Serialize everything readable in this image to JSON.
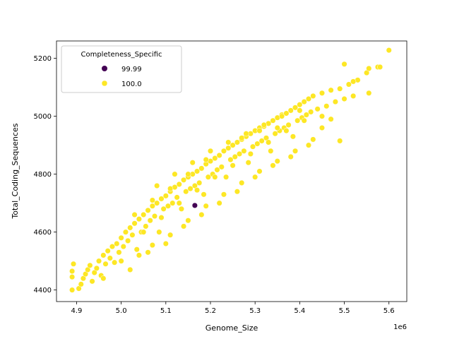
{
  "chart_data": {
    "type": "scatter",
    "xlabel": "Genome_Size",
    "ylabel": "Total_Coding_Sequences",
    "x_offset_label": "1e6",
    "xlim": [
      4.855,
      5.64
    ],
    "ylim": [
      4360,
      5260
    ],
    "x_ticks": [
      4.9,
      5.0,
      5.1,
      5.2,
      5.3,
      5.4,
      5.5,
      5.6
    ],
    "x_tick_labels": [
      "4.9",
      "5.0",
      "5.1",
      "5.2",
      "5.3",
      "5.4",
      "5.5",
      "5.6"
    ],
    "y_ticks": [
      4400,
      4600,
      4800,
      5000,
      5200
    ],
    "y_tick_labels": [
      "4400",
      "4600",
      "4800",
      "5000",
      "5200"
    ],
    "grid": false,
    "legend": {
      "title": "Completeness_Specific",
      "placement": "top-left",
      "entries": [
        "99.99",
        "100.0"
      ]
    },
    "series": [
      {
        "name": "99.99",
        "color": "#440154",
        "points": [
          [
            5.165,
            4692
          ]
        ]
      },
      {
        "name": "100.0",
        "color": "#fde725",
        "points": [
          [
            4.89,
            4400
          ],
          [
            4.89,
            4445
          ],
          [
            4.89,
            4465
          ],
          [
            4.893,
            4490
          ],
          [
            4.905,
            4405
          ],
          [
            4.91,
            4420
          ],
          [
            4.915,
            4440
          ],
          [
            4.92,
            4455
          ],
          [
            4.925,
            4470
          ],
          [
            4.93,
            4485
          ],
          [
            4.935,
            4430
          ],
          [
            4.94,
            4460
          ],
          [
            4.945,
            4475
          ],
          [
            4.95,
            4500
          ],
          [
            4.955,
            4450
          ],
          [
            4.96,
            4520
          ],
          [
            4.965,
            4490
          ],
          [
            4.97,
            4535
          ],
          [
            4.975,
            4510
          ],
          [
            4.98,
            4550
          ],
          [
            4.985,
            4495
          ],
          [
            4.99,
            4560
          ],
          [
            4.995,
            4530
          ],
          [
            5.0,
            4580
          ],
          [
            5.005,
            4550
          ],
          [
            5.01,
            4600
          ],
          [
            5.015,
            4570
          ],
          [
            5.02,
            4615
          ],
          [
            5.025,
            4590
          ],
          [
            5.03,
            4630
          ],
          [
            5.035,
            4540
          ],
          [
            5.04,
            4645
          ],
          [
            5.045,
            4600
          ],
          [
            5.05,
            4660
          ],
          [
            5.055,
            4620
          ],
          [
            5.06,
            4675
          ],
          [
            5.065,
            4640
          ],
          [
            5.07,
            4690
          ],
          [
            5.075,
            4655
          ],
          [
            5.08,
            4700
          ],
          [
            5.085,
            4600
          ],
          [
            5.09,
            4715
          ],
          [
            5.095,
            4680
          ],
          [
            5.1,
            4725
          ],
          [
            5.105,
            4690
          ],
          [
            5.11,
            4740
          ],
          [
            5.115,
            4700
          ],
          [
            5.12,
            4755
          ],
          [
            5.125,
            4720
          ],
          [
            5.13,
            4765
          ],
          [
            5.135,
            4680
          ],
          [
            5.14,
            4780
          ],
          [
            5.145,
            4740
          ],
          [
            5.15,
            4790
          ],
          [
            5.155,
            4750
          ],
          [
            5.16,
            4800
          ],
          [
            5.165,
            4760
          ],
          [
            5.17,
            4810
          ],
          [
            5.175,
            4770
          ],
          [
            5.18,
            4820
          ],
          [
            5.185,
            4730
          ],
          [
            5.19,
            4835
          ],
          [
            5.195,
            4790
          ],
          [
            5.2,
            4845
          ],
          [
            5.205,
            4800
          ],
          [
            5.21,
            4855
          ],
          [
            5.215,
            4815
          ],
          [
            5.22,
            4865
          ],
          [
            5.225,
            4825
          ],
          [
            5.23,
            4880
          ],
          [
            5.235,
            4790
          ],
          [
            5.24,
            4890
          ],
          [
            5.245,
            4850
          ],
          [
            5.25,
            4900
          ],
          [
            5.255,
            4860
          ],
          [
            5.26,
            4910
          ],
          [
            5.265,
            4870
          ],
          [
            5.27,
            4920
          ],
          [
            5.275,
            4880
          ],
          [
            5.28,
            4930
          ],
          [
            5.285,
            4840
          ],
          [
            5.29,
            4940
          ],
          [
            5.295,
            4895
          ],
          [
            5.3,
            4950
          ],
          [
            5.305,
            4905
          ],
          [
            5.31,
            4960
          ],
          [
            5.315,
            4915
          ],
          [
            5.32,
            4965
          ],
          [
            5.325,
            4925
          ],
          [
            5.33,
            4975
          ],
          [
            5.335,
            4880
          ],
          [
            5.34,
            4985
          ],
          [
            5.345,
            4940
          ],
          [
            5.35,
            4995
          ],
          [
            5.355,
            4950
          ],
          [
            5.36,
            5005
          ],
          [
            5.365,
            4960
          ],
          [
            5.37,
            5010
          ],
          [
            5.375,
            4970
          ],
          [
            5.38,
            5020
          ],
          [
            5.385,
            4930
          ],
          [
            5.39,
            5030
          ],
          [
            5.395,
            4985
          ],
          [
            5.4,
            5040
          ],
          [
            5.405,
            4995
          ],
          [
            5.41,
            5050
          ],
          [
            5.415,
            5005
          ],
          [
            5.42,
            5060
          ],
          [
            5.425,
            5015
          ],
          [
            5.43,
            5070
          ],
          [
            5.44,
            5025
          ],
          [
            5.45,
            5080
          ],
          [
            5.46,
            5035
          ],
          [
            5.47,
            5090
          ],
          [
            5.48,
            5050
          ],
          [
            5.49,
            5095
          ],
          [
            5.5,
            5060
          ],
          [
            5.51,
            5110
          ],
          [
            5.52,
            5070
          ],
          [
            5.53,
            5125
          ],
          [
            5.55,
            5150
          ],
          [
            5.555,
            5165
          ],
          [
            5.575,
            5170
          ],
          [
            5.58,
            5170
          ],
          [
            5.6,
            5228
          ],
          [
            5.5,
            5180
          ],
          [
            5.49,
            4915
          ],
          [
            5.555,
            5080
          ],
          [
            5.52,
            5120
          ],
          [
            5.02,
            4470
          ],
          [
            5.06,
            4530
          ],
          [
            5.1,
            4560
          ],
          [
            5.14,
            4620
          ],
          [
            5.18,
            4660
          ],
          [
            5.22,
            4700
          ],
          [
            5.26,
            4740
          ],
          [
            5.3,
            4790
          ],
          [
            5.34,
            4830
          ],
          [
            5.38,
            4860
          ],
          [
            5.42,
            4900
          ],
          [
            5.08,
            4760
          ],
          [
            5.12,
            4800
          ],
          [
            5.16,
            4840
          ],
          [
            5.2,
            4880
          ],
          [
            5.24,
            4910
          ],
          [
            5.28,
            4940
          ],
          [
            5.32,
            4970
          ],
          [
            5.36,
            5000
          ],
          [
            5.4,
            5020
          ],
          [
            4.96,
            4440
          ],
          [
            5.0,
            4500
          ],
          [
            5.04,
            4520
          ],
          [
            5.07,
            4555
          ],
          [
            5.11,
            4590
          ],
          [
            5.15,
            4640
          ],
          [
            5.19,
            4690
          ],
          [
            5.23,
            4730
          ],
          [
            5.27,
            4770
          ],
          [
            5.31,
            4810
          ],
          [
            5.35,
            4845
          ],
          [
            5.39,
            4880
          ],
          [
            5.43,
            4920
          ],
          [
            5.45,
            4960
          ],
          [
            5.47,
            4990
          ],
          [
            5.05,
            4600
          ],
          [
            5.09,
            4650
          ],
          [
            5.13,
            4700
          ],
          [
            5.17,
            4745
          ],
          [
            5.21,
            4790
          ],
          [
            5.25,
            4830
          ],
          [
            5.29,
            4870
          ],
          [
            5.33,
            4910
          ],
          [
            5.37,
            4950
          ],
          [
            5.41,
            4985
          ],
          [
            5.03,
            4660
          ],
          [
            5.07,
            4710
          ],
          [
            5.11,
            4750
          ],
          [
            5.15,
            4800
          ],
          [
            5.19,
            4850
          ],
          [
            5.23,
            4880
          ],
          [
            5.27,
            4925
          ],
          [
            5.31,
            4950
          ],
          [
            5.35,
            4960
          ],
          [
            5.45,
            5000
          ]
        ]
      }
    ]
  }
}
